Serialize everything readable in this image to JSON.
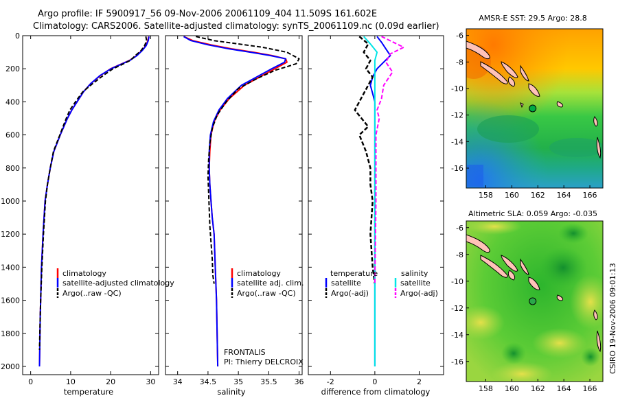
{
  "header": {
    "line1": "Argo profile: IF 5900917_56 09-Nov-2006 20061109_404 11.509S 161.602E",
    "line2": "Climatology: CARS2006. Satellite-adjusted climatology: synTS_20061109.nc (0.09d earlier)"
  },
  "credit": "CSIRO 19-Nov-2006 09:01:13",
  "notes": {
    "project": "FRONTALIS",
    "pi": "PI: Thierry DELCROIX"
  },
  "colors": {
    "climatology": "#ff0000",
    "satellite": "#0000ff",
    "argo": "#000000",
    "salinity_satellite": "#00e5e5",
    "salinity_argo": "#ff00ff",
    "float_marker": "#00aa44"
  },
  "chart_data": [
    {
      "type": "line",
      "id": "temperature",
      "xlabel": "temperature",
      "ylabel": "",
      "xlim": [
        -2,
        32
      ],
      "ylim": [
        2050,
        0
      ],
      "xticks": [
        0,
        10,
        20,
        30
      ],
      "yticks": [
        0,
        200,
        400,
        600,
        800,
        1000,
        1200,
        1400,
        1600,
        1800,
        2000
      ],
      "legend": [
        "climatology",
        "satellite-adjusted climatology",
        "Argo(..raw -QC)"
      ],
      "series": [
        {
          "name": "climatology",
          "x": [
            29.5,
            29.3,
            28.8,
            27.8,
            26.5,
            24.7,
            22.3,
            20.0,
            17.5,
            15.0,
            13.2,
            11.6,
            10.3,
            9.2,
            8.3,
            7.4,
            6.6,
            5.8,
            4.9,
            4.2,
            3.6,
            3.1,
            2.7,
            2.4,
            2.2
          ],
          "y": [
            5,
            30,
            60,
            90,
            120,
            150,
            175,
            200,
            240,
            290,
            340,
            400,
            450,
            500,
            550,
            600,
            650,
            700,
            800,
            900,
            1000,
            1200,
            1400,
            1700,
            2000
          ]
        },
        {
          "name": "satellite-adjusted climatology",
          "x": [
            29.6,
            29.4,
            28.9,
            27.9,
            26.6,
            24.8,
            22.4,
            20.1,
            17.4,
            15.0,
            13.2,
            11.6,
            10.3,
            9.2,
            8.3,
            7.4,
            6.6,
            5.8,
            4.9,
            4.2,
            3.6,
            3.1,
            2.7,
            2.4,
            2.2
          ],
          "y": [
            5,
            30,
            60,
            90,
            120,
            150,
            175,
            200,
            240,
            290,
            340,
            400,
            450,
            500,
            550,
            600,
            650,
            700,
            800,
            900,
            1000,
            1200,
            1400,
            1700,
            2000
          ]
        },
        {
          "name": "Argo(..raw -QC)",
          "x": [
            28.8,
            29.0,
            28.5,
            27.6,
            26.2,
            24.9,
            22.8,
            20.6,
            18.2,
            15.5,
            13.0,
            11.2,
            9.8,
            8.9,
            8.1,
            7.3,
            6.5,
            5.7,
            4.9,
            4.2,
            3.7,
            3.2,
            2.8,
            2.5,
            2.3,
            2.2
          ],
          "y": [
            5,
            30,
            60,
            90,
            120,
            150,
            175,
            200,
            240,
            290,
            340,
            400,
            450,
            500,
            550,
            600,
            650,
            700,
            800,
            900,
            1000,
            1200,
            1400,
            1600,
            1800,
            1900
          ]
        }
      ]
    },
    {
      "type": "line",
      "id": "salinity",
      "xlabel": "salinity",
      "ylabel": "",
      "xlim": [
        33.8,
        36.05
      ],
      "ylim": [
        2050,
        0
      ],
      "xticks": [
        34,
        34.5,
        35,
        35.5,
        36
      ],
      "legend": [
        "climatology",
        "satellite adj. clim.",
        "Argo(..raw -QC)"
      ],
      "series": [
        {
          "name": "climatology",
          "x": [
            34.1,
            34.25,
            34.55,
            34.9,
            35.25,
            35.55,
            35.78,
            35.8,
            35.6,
            35.35,
            35.1,
            34.85,
            34.7,
            34.6,
            34.55,
            34.53,
            34.52,
            34.53,
            34.55,
            34.57,
            34.6,
            34.62,
            34.64,
            34.65,
            34.66
          ],
          "y": [
            5,
            30,
            55,
            80,
            100,
            120,
            140,
            160,
            200,
            250,
            300,
            380,
            450,
            520,
            600,
            700,
            800,
            900,
            1000,
            1100,
            1200,
            1400,
            1600,
            1800,
            2000
          ]
        },
        {
          "name": "satellite adj. clim.",
          "x": [
            34.1,
            34.22,
            34.5,
            34.85,
            35.2,
            35.52,
            35.78,
            35.76,
            35.55,
            35.3,
            35.05,
            34.82,
            34.68,
            34.59,
            34.54,
            34.52,
            34.52,
            34.53,
            34.55,
            34.57,
            34.6,
            34.62,
            34.64,
            34.65,
            34.66
          ],
          "y": [
            5,
            30,
            55,
            80,
            100,
            120,
            140,
            160,
            200,
            250,
            300,
            380,
            450,
            520,
            600,
            700,
            800,
            900,
            1000,
            1100,
            1200,
            1400,
            1600,
            1800,
            2000
          ]
        },
        {
          "name": "Argo(..raw -QC)",
          "x": [
            34.3,
            34.6,
            35.0,
            35.4,
            35.8,
            36.0,
            35.95,
            35.6,
            35.3,
            35.0,
            34.8,
            34.65,
            34.57,
            34.53,
            34.51,
            34.5,
            34.51,
            34.52,
            34.53,
            34.55,
            34.57,
            34.58,
            34.6
          ],
          "y": [
            5,
            30,
            50,
            70,
            100,
            140,
            170,
            210,
            260,
            320,
            400,
            480,
            560,
            650,
            750,
            850,
            950,
            1050,
            1150,
            1250,
            1350,
            1450,
            1500
          ]
        }
      ]
    },
    {
      "type": "line",
      "id": "difference",
      "xlabel": "difference from climatology",
      "ylabel": "",
      "xlim": [
        -3,
        3.1
      ],
      "ylim": [
        2050,
        0
      ],
      "xticks": [
        -2,
        0,
        2
      ],
      "legend_left_title": "temperature",
      "legend_right_title": "salinity",
      "legend_left": [
        "satellite",
        "Argo(-adj)"
      ],
      "legend_right": [
        "satellite",
        "Argo(-adj)"
      ],
      "series": [
        {
          "name": "temperature satellite",
          "x": [
            0.1,
            0.3,
            0.5,
            0.7,
            0.4,
            0.1,
            -0.1,
            -0.2,
            -0.1,
            0.0,
            0.0,
            0.0,
            0.0,
            0.0,
            0.0
          ],
          "y": [
            5,
            40,
            80,
            120,
            160,
            200,
            250,
            300,
            350,
            400,
            500,
            700,
            1000,
            1500,
            2000
          ]
        },
        {
          "name": "temperature Argo(-adj)",
          "x": [
            -0.7,
            -0.3,
            -0.5,
            -0.2,
            -0.4,
            -0.1,
            -0.3,
            -0.5,
            -0.9,
            -0.6,
            -0.3,
            -0.7,
            -0.4,
            -0.2,
            -0.2,
            -0.1,
            -0.2,
            -0.1,
            0.0
          ],
          "y": [
            5,
            50,
            100,
            150,
            200,
            250,
            300,
            350,
            450,
            500,
            550,
            600,
            700,
            800,
            900,
            1000,
            1200,
            1400,
            1500
          ]
        },
        {
          "name": "salinity satellite",
          "x": [
            -0.5,
            -0.2,
            0.1,
            0.0,
            0.0,
            0.0,
            0.0,
            0.0,
            0.0
          ],
          "y": [
            5,
            50,
            100,
            150,
            200,
            300,
            500,
            1000,
            2000
          ]
        },
        {
          "name": "salinity Argo(-adj)",
          "x": [
            0.3,
            1.3,
            0.7,
            0.5,
            0.8,
            0.4,
            0.3,
            0.1,
            0.2,
            0.05,
            0.05,
            0.0
          ],
          "y": [
            5,
            70,
            110,
            160,
            220,
            300,
            380,
            450,
            500,
            600,
            1000,
            1500
          ]
        }
      ]
    },
    {
      "type": "heatmap",
      "id": "sst-map",
      "title": "AMSR-E SST: 29.5 Argo: 28.8",
      "xticks": [
        158,
        160,
        162,
        164,
        166
      ],
      "yticks": [
        -6,
        -8,
        -10,
        -12,
        -14,
        -16
      ],
      "xlim": [
        156.5,
        167
      ],
      "ylim": [
        -17.5,
        -5.5
      ],
      "float_position": [
        161.6,
        -11.5
      ]
    },
    {
      "type": "heatmap",
      "id": "sla-map",
      "title": "Altimetric SLA: 0.059 Argo: -0.035",
      "xticks": [
        158,
        160,
        162,
        164,
        166
      ],
      "yticks": [
        -6,
        -8,
        -10,
        -12,
        -14,
        -16
      ],
      "xlim": [
        156.5,
        167
      ],
      "ylim": [
        -17.5,
        -5.5
      ],
      "float_position": [
        161.6,
        -11.5
      ]
    }
  ]
}
